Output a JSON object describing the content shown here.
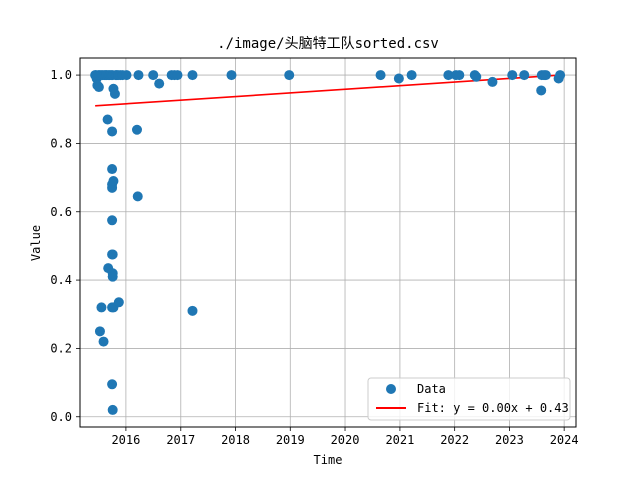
{
  "chart_data": {
    "type": "scatter",
    "title": "./image/头脑特工队sorted.csv",
    "xlabel": "Time",
    "ylabel": "Value",
    "xlim": [
      "2015-03-01",
      "2024-03-20"
    ],
    "ylim": [
      -0.03,
      1.05
    ],
    "x_ticks": [
      "2016",
      "2017",
      "2018",
      "2019",
      "2020",
      "2021",
      "2022",
      "2023",
      "2024"
    ],
    "y_ticks": [
      "0.0",
      "0.2",
      "0.4",
      "0.6",
      "0.8",
      "1.0"
    ],
    "grid": true,
    "legend_position": "lower-right",
    "series": [
      {
        "name": "Data",
        "kind": "scatter",
        "color": "#1f77b4",
        "points": [
          {
            "x": "2015-06-10",
            "y": 1.0
          },
          {
            "x": "2015-06-15",
            "y": 1.0
          },
          {
            "x": "2015-06-20",
            "y": 0.99
          },
          {
            "x": "2015-06-25",
            "y": 0.97
          },
          {
            "x": "2015-07-01",
            "y": 1.0
          },
          {
            "x": "2015-07-05",
            "y": 0.965
          },
          {
            "x": "2015-07-10",
            "y": 1.0
          },
          {
            "x": "2015-07-20",
            "y": 1.0
          },
          {
            "x": "2015-07-30",
            "y": 1.0
          },
          {
            "x": "2015-08-10",
            "y": 1.0
          },
          {
            "x": "2015-08-20",
            "y": 1.0
          },
          {
            "x": "2015-08-25",
            "y": 1.0
          },
          {
            "x": "2015-09-05",
            "y": 1.0
          },
          {
            "x": "2015-09-15",
            "y": 1.0
          },
          {
            "x": "2015-09-25",
            "y": 1.0
          },
          {
            "x": "2015-10-05",
            "y": 1.0
          },
          {
            "x": "2015-10-10",
            "y": 0.96
          },
          {
            "x": "2015-10-20",
            "y": 0.945
          },
          {
            "x": "2015-10-25",
            "y": 1.0
          },
          {
            "x": "2015-11-01",
            "y": 1.0
          },
          {
            "x": "2015-11-10",
            "y": 1.0
          },
          {
            "x": "2015-11-25",
            "y": 1.0
          },
          {
            "x": "2015-12-10",
            "y": 1.0
          },
          {
            "x": "2016-01-05",
            "y": 1.0
          },
          {
            "x": "2015-07-12",
            "y": 0.25
          },
          {
            "x": "2015-07-22",
            "y": 0.32
          },
          {
            "x": "2015-08-05",
            "y": 0.22
          },
          {
            "x": "2015-09-01",
            "y": 0.87
          },
          {
            "x": "2015-09-05",
            "y": 0.435
          },
          {
            "x": "2015-10-01",
            "y": 0.835
          },
          {
            "x": "2015-10-01",
            "y": 0.725
          },
          {
            "x": "2015-10-01",
            "y": 0.68
          },
          {
            "x": "2015-10-01",
            "y": 0.67
          },
          {
            "x": "2015-10-10",
            "y": 0.69
          },
          {
            "x": "2015-10-01",
            "y": 0.575
          },
          {
            "x": "2015-10-01",
            "y": 0.475
          },
          {
            "x": "2015-10-05",
            "y": 0.475
          },
          {
            "x": "2015-10-05",
            "y": 0.42
          },
          {
            "x": "2015-10-05",
            "y": 0.41
          },
          {
            "x": "2015-10-01",
            "y": 0.32
          },
          {
            "x": "2015-10-10",
            "y": 0.32
          },
          {
            "x": "2015-11-15",
            "y": 0.335
          },
          {
            "x": "2015-10-01",
            "y": 0.095
          },
          {
            "x": "2015-10-05",
            "y": 0.02
          },
          {
            "x": "2016-03-15",
            "y": 0.84
          },
          {
            "x": "2016-03-20",
            "y": 0.645
          },
          {
            "x": "2016-03-25",
            "y": 1.0
          },
          {
            "x": "2016-07-01",
            "y": 1.0
          },
          {
            "x": "2016-08-10",
            "y": 0.975
          },
          {
            "x": "2016-11-01",
            "y": 1.0
          },
          {
            "x": "2016-11-20",
            "y": 1.0
          },
          {
            "x": "2016-12-10",
            "y": 1.0
          },
          {
            "x": "2017-03-20",
            "y": 1.0
          },
          {
            "x": "2017-03-20",
            "y": 0.31
          },
          {
            "x": "2017-12-05",
            "y": 1.0
          },
          {
            "x": "2018-12-25",
            "y": 1.0
          },
          {
            "x": "2020-08-25",
            "y": 1.0
          },
          {
            "x": "2020-12-25",
            "y": 0.99
          },
          {
            "x": "2021-03-20",
            "y": 1.0
          },
          {
            "x": "2021-11-20",
            "y": 1.0
          },
          {
            "x": "2022-01-10",
            "y": 1.0
          },
          {
            "x": "2022-02-01",
            "y": 1.0
          },
          {
            "x": "2022-05-15",
            "y": 1.0
          },
          {
            "x": "2022-05-25",
            "y": 0.995
          },
          {
            "x": "2022-09-10",
            "y": 0.98
          },
          {
            "x": "2023-01-20",
            "y": 1.0
          },
          {
            "x": "2023-04-10",
            "y": 1.0
          },
          {
            "x": "2023-08-01",
            "y": 0.955
          },
          {
            "x": "2023-08-05",
            "y": 1.0
          },
          {
            "x": "2023-08-20",
            "y": 1.0
          },
          {
            "x": "2023-09-01",
            "y": 1.0
          },
          {
            "x": "2023-11-25",
            "y": 0.99
          },
          {
            "x": "2023-12-05",
            "y": 1.0
          }
        ]
      },
      {
        "name": "Fit: y = 0.00x + 0.43",
        "kind": "line",
        "color": "#ff0000",
        "points": [
          {
            "x": "2015-06-10",
            "y": 0.91
          },
          {
            "x": "2023-12-05",
            "y": 1.0
          }
        ]
      }
    ]
  }
}
